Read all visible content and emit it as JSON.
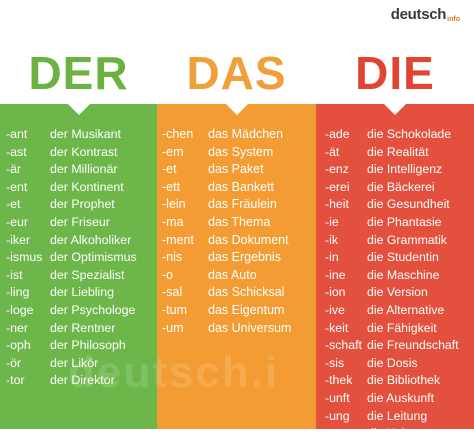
{
  "brand": {
    "name": "deutsch",
    "suffix": "info"
  },
  "headings": [
    "DER",
    "DAS",
    "DIE"
  ],
  "watermark": "deutsch.i",
  "colors": {
    "der": "#6db74a",
    "das": "#f39c33",
    "die": "#e4503e"
  },
  "der": [
    {
      "suffix": "-ant",
      "word": "der Musikant"
    },
    {
      "suffix": "-ast",
      "word": "der Kontrast"
    },
    {
      "suffix": "-är",
      "word": "der Millionär"
    },
    {
      "suffix": "-ent",
      "word": "der Kontinent"
    },
    {
      "suffix": "-et",
      "word": "der Prophet"
    },
    {
      "suffix": "-eur",
      "word": "der Friseur"
    },
    {
      "suffix": "-iker",
      "word": "der Alkoholiker"
    },
    {
      "suffix": "-ismus",
      "word": "der Optimismus"
    },
    {
      "suffix": "-ist",
      "word": "der Spezialist"
    },
    {
      "suffix": "-ling",
      "word": "der Liebling"
    },
    {
      "suffix": "-loge",
      "word": "der Psychologe"
    },
    {
      "suffix": "-ner",
      "word": "der Rentner"
    },
    {
      "suffix": "-oph",
      "word": "der Philosoph"
    },
    {
      "suffix": "-ör",
      "word": "der Likör"
    },
    {
      "suffix": "-tor",
      "word": "der Direktor"
    }
  ],
  "das": [
    {
      "suffix": "-chen",
      "word": "das Mädchen"
    },
    {
      "suffix": "-em",
      "word": "das System"
    },
    {
      "suffix": "-et",
      "word": "das Paket"
    },
    {
      "suffix": "-ett",
      "word": "das Bankett"
    },
    {
      "suffix": "-lein",
      "word": "das Fräulein"
    },
    {
      "suffix": "-ma",
      "word": "das Thema"
    },
    {
      "suffix": "-ment",
      "word": "das Dokument"
    },
    {
      "suffix": "-nis",
      "word": "das Ergebnis"
    },
    {
      "suffix": "-o",
      "word": "das Auto"
    },
    {
      "suffix": "-sal",
      "word": "das Schicksal"
    },
    {
      "suffix": "-tum",
      "word": "das Eigentum"
    },
    {
      "suffix": "-um",
      "word": "das Universum"
    }
  ],
  "die": [
    {
      "suffix": "-ade",
      "word": "die Schokolade"
    },
    {
      "suffix": "-ät",
      "word": "die Realität"
    },
    {
      "suffix": "-enz",
      "word": "die Intelligenz"
    },
    {
      "suffix": "-erei",
      "word": "die Bäckerei"
    },
    {
      "suffix": "-heit",
      "word": "die Gesundheit"
    },
    {
      "suffix": "-ie",
      "word": "die Phantasie"
    },
    {
      "suffix": "-ik",
      "word": "die Grammatik"
    },
    {
      "suffix": "-in",
      "word": "die Studentin"
    },
    {
      "suffix": "-ine",
      "word": "die Maschine"
    },
    {
      "suffix": "-ion",
      "word": "die Version"
    },
    {
      "suffix": "-ive",
      "word": "die Alternative"
    },
    {
      "suffix": "-keit",
      "word": "die Fähigkeit"
    },
    {
      "suffix": "-schaft",
      "word": "die Freundschaft"
    },
    {
      "suffix": "-sis",
      "word": "die Dosis"
    },
    {
      "suffix": "-thek",
      "word": "die Bibliothek"
    },
    {
      "suffix": "-unft",
      "word": "die Auskunft"
    },
    {
      "suffix": "-ung",
      "word": "die Leitung"
    },
    {
      "suffix": "-ur",
      "word": "die Kultur"
    }
  ]
}
